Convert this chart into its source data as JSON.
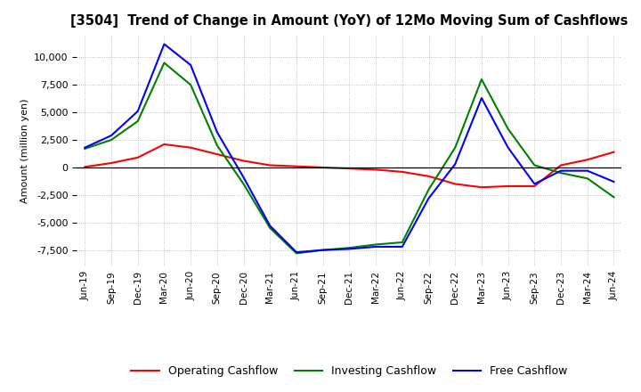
{
  "title": "[3504]  Trend of Change in Amount (YoY) of 12Mo Moving Sum of Cashflows",
  "ylabel": "Amount (million yen)",
  "ylim": [
    -9000,
    12000
  ],
  "yticks": [
    -7500,
    -5000,
    -2500,
    0,
    2500,
    5000,
    7500,
    10000
  ],
  "x_labels": [
    "Jun-19",
    "Sep-19",
    "Dec-19",
    "Mar-20",
    "Jun-20",
    "Sep-20",
    "Dec-20",
    "Mar-21",
    "Jun-21",
    "Sep-21",
    "Dec-21",
    "Mar-22",
    "Jun-22",
    "Sep-22",
    "Dec-22",
    "Mar-23",
    "Jun-23",
    "Sep-23",
    "Dec-23",
    "Mar-24",
    "Jun-24"
  ],
  "operating_cashflow": [
    50,
    400,
    900,
    2100,
    1800,
    1200,
    600,
    200,
    100,
    0,
    -100,
    -200,
    -400,
    -800,
    -1500,
    -1800,
    -1700,
    -1700,
    200,
    700,
    1400
  ],
  "investing_cashflow": [
    1700,
    2500,
    4200,
    9500,
    7500,
    2000,
    -1500,
    -5500,
    -7800,
    -7500,
    -7300,
    -7000,
    -6800,
    -2000,
    1800,
    8000,
    3500,
    200,
    -500,
    -1000,
    -2700
  ],
  "free_cashflow": [
    1800,
    2900,
    5100,
    11200,
    9300,
    3200,
    -900,
    -5300,
    -7700,
    -7500,
    -7400,
    -7200,
    -7200,
    -2800,
    300,
    6300,
    1800,
    -1500,
    -300,
    -300,
    -1300
  ],
  "operating_color": "#ff0000",
  "investing_color": "#008000",
  "free_color": "#0000ff",
  "background_color": "#ffffff",
  "grid_color": "#b0b0b0"
}
